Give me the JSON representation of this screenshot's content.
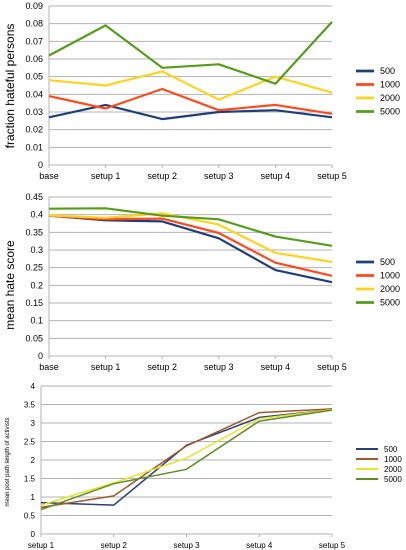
{
  "colors": {
    "500": "#1f3f7a",
    "1000": "#ff4a1c",
    "2000": "#ffd320",
    "5000": "#579d1c",
    "p3_500": "#2d3e7e",
    "p3_1000": "#9e5a2b",
    "p3_2000": "#e3e42b",
    "p3_5000": "#5f8a26",
    "grid": "#b3b3b3"
  },
  "chart_data": [
    {
      "type": "line",
      "title": "",
      "ylabel": "fraction hateful persons",
      "xlabel": "",
      "categories": [
        "base",
        "setup 1",
        "setup 2",
        "setup 3",
        "setup 4",
        "setup 5"
      ],
      "ylim": [
        0,
        0.09
      ],
      "yticks": [
        "0",
        "0.01",
        "0.02",
        "0.03",
        "0.04",
        "0.05",
        "0.06",
        "0.07",
        "0.08",
        "0.09"
      ],
      "grid": true,
      "legend_position": "right",
      "series": [
        {
          "name": "500",
          "values": [
            0.027,
            0.034,
            0.026,
            0.03,
            0.031,
            0.027
          ]
        },
        {
          "name": "1000",
          "values": [
            0.039,
            0.032,
            0.043,
            0.031,
            0.034,
            0.029
          ]
        },
        {
          "name": "2000",
          "values": [
            0.048,
            0.045,
            0.053,
            0.037,
            0.05,
            0.041
          ]
        },
        {
          "name": "5000",
          "values": [
            0.062,
            0.079,
            0.055,
            0.057,
            0.046,
            0.081
          ]
        }
      ]
    },
    {
      "type": "line",
      "title": "",
      "ylabel": "mean hate score",
      "xlabel": "",
      "categories": [
        "base",
        "setup 1",
        "setup 2",
        "setup 3",
        "setup 4",
        "setup 5"
      ],
      "ylim": [
        0,
        0.45
      ],
      "yticks": [
        "0",
        "0.05",
        "0.1",
        "0.15",
        "0.2",
        "0.25",
        "0.3",
        "0.35",
        "0.4",
        "0.45"
      ],
      "grid": true,
      "legend_position": "right",
      "series": [
        {
          "name": "500",
          "values": [
            0.397,
            0.384,
            0.381,
            0.333,
            0.243,
            0.209
          ]
        },
        {
          "name": "1000",
          "values": [
            0.397,
            0.387,
            0.389,
            0.348,
            0.264,
            0.227
          ]
        },
        {
          "name": "2000",
          "values": [
            0.398,
            0.391,
            0.404,
            0.372,
            0.292,
            0.266
          ]
        },
        {
          "name": "5000",
          "values": [
            0.417,
            0.418,
            0.397,
            0.387,
            0.338,
            0.312
          ]
        }
      ]
    },
    {
      "type": "line",
      "title": "",
      "ylabel": "mean post path length of activists",
      "xlabel": "",
      "categories": [
        "setup 1",
        "setup 2",
        "setup 3",
        "setup 4",
        "setup 5"
      ],
      "ylim": [
        0,
        4
      ],
      "yticks": [
        "0",
        "0.5",
        "1",
        "1.5",
        "2",
        "2.5",
        "3",
        "3.5",
        "4"
      ],
      "grid": true,
      "legend_position": "right",
      "series": [
        {
          "name": "500",
          "values": [
            0.85,
            0.78,
            2.4,
            3.15,
            3.36
          ]
        },
        {
          "name": "1000",
          "values": [
            0.72,
            1.03,
            2.38,
            3.28,
            3.38
          ]
        },
        {
          "name": "2000",
          "values": [
            0.78,
            1.38,
            2.05,
            3.12,
            3.36
          ]
        },
        {
          "name": "5000",
          "values": [
            0.66,
            1.36,
            1.75,
            3.05,
            3.35
          ]
        }
      ]
    }
  ]
}
